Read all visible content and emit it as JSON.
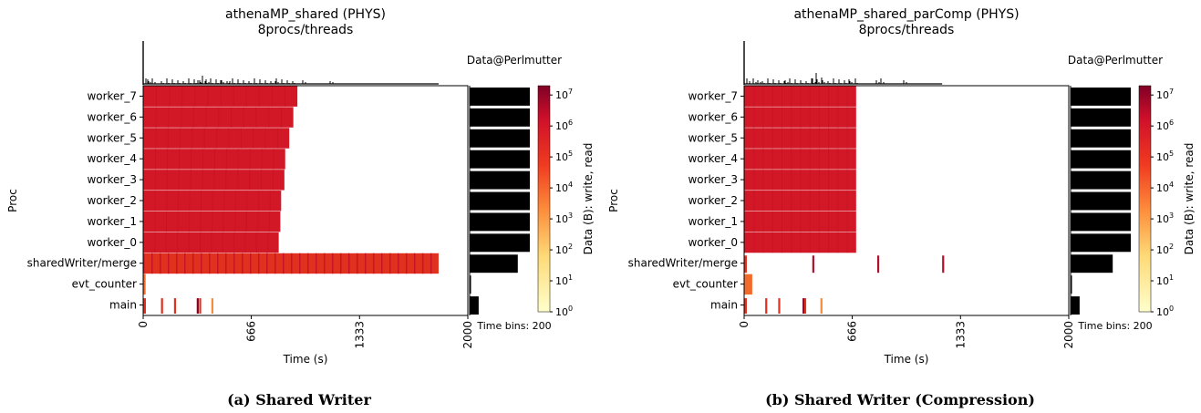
{
  "chart_data": [
    {
      "type": "heatmap",
      "title": "athenaMP_shared (PHYS)",
      "subtitle": "8procs/threads",
      "caption": "(a) Shared Writer",
      "xlabel": "Time (s)",
      "ylabel": "Proc",
      "xlim": [
        0,
        2000
      ],
      "xticks": [
        "0",
        "666",
        "1333",
        "2000"
      ],
      "procs": [
        "worker_7",
        "worker_6",
        "worker_5",
        "worker_4",
        "worker_3",
        "worker_2",
        "worker_1",
        "worker_0",
        "sharedWriter/merge",
        "evt_counter",
        "main"
      ],
      "activity_end_s": [
        950,
        925,
        900,
        875,
        870,
        850,
        845,
        835,
        1820,
        15,
        420
      ],
      "main_events_s": [
        110,
        190,
        330,
        345,
        420
      ],
      "side_bar_label": "Data@Perlmutter",
      "side_bar_totals_fraction": [
        1,
        1,
        1,
        1,
        1,
        1,
        1,
        1,
        0.8,
        0.02,
        0.15
      ],
      "time_bins_label": "Time bins: 200",
      "colorbar_label": "Data (B): write, read",
      "colorbar_ticks": [
        "10^0",
        "10^1",
        "10^2",
        "10^3",
        "10^4",
        "10^5",
        "10^6",
        "10^7"
      ]
    },
    {
      "type": "heatmap",
      "title": "athenaMP_shared_parComp (PHYS)",
      "subtitle": "8procs/threads",
      "caption": "(b) Shared Writer (Compression)",
      "xlabel": "Time (s)",
      "ylabel": "Proc",
      "xlim": [
        0,
        2000
      ],
      "xticks": [
        "0",
        "666",
        "1333",
        "2000"
      ],
      "procs": [
        "worker_7",
        "worker_6",
        "worker_5",
        "worker_4",
        "worker_3",
        "worker_2",
        "worker_1",
        "worker_0",
        "sharedWriter/merge",
        "evt_counter",
        "main"
      ],
      "activity_end_s": [
        690,
        690,
        690,
        690,
        690,
        690,
        690,
        690,
        1220,
        50,
        470
      ],
      "merge_events_s": [
        420,
        820,
        1220
      ],
      "main_events_s": [
        130,
        210,
        360,
        370,
        470
      ],
      "side_bar_label": "Data@Perlmutter",
      "side_bar_totals_fraction": [
        1,
        1,
        1,
        1,
        1,
        1,
        1,
        1,
        0.7,
        0.02,
        0.15
      ],
      "time_bins_label": "Time bins: 200",
      "colorbar_label": "Data (B): write, read",
      "colorbar_ticks": [
        "10^0",
        "10^1",
        "10^2",
        "10^3",
        "10^4",
        "10^5",
        "10^6",
        "10^7"
      ]
    }
  ]
}
